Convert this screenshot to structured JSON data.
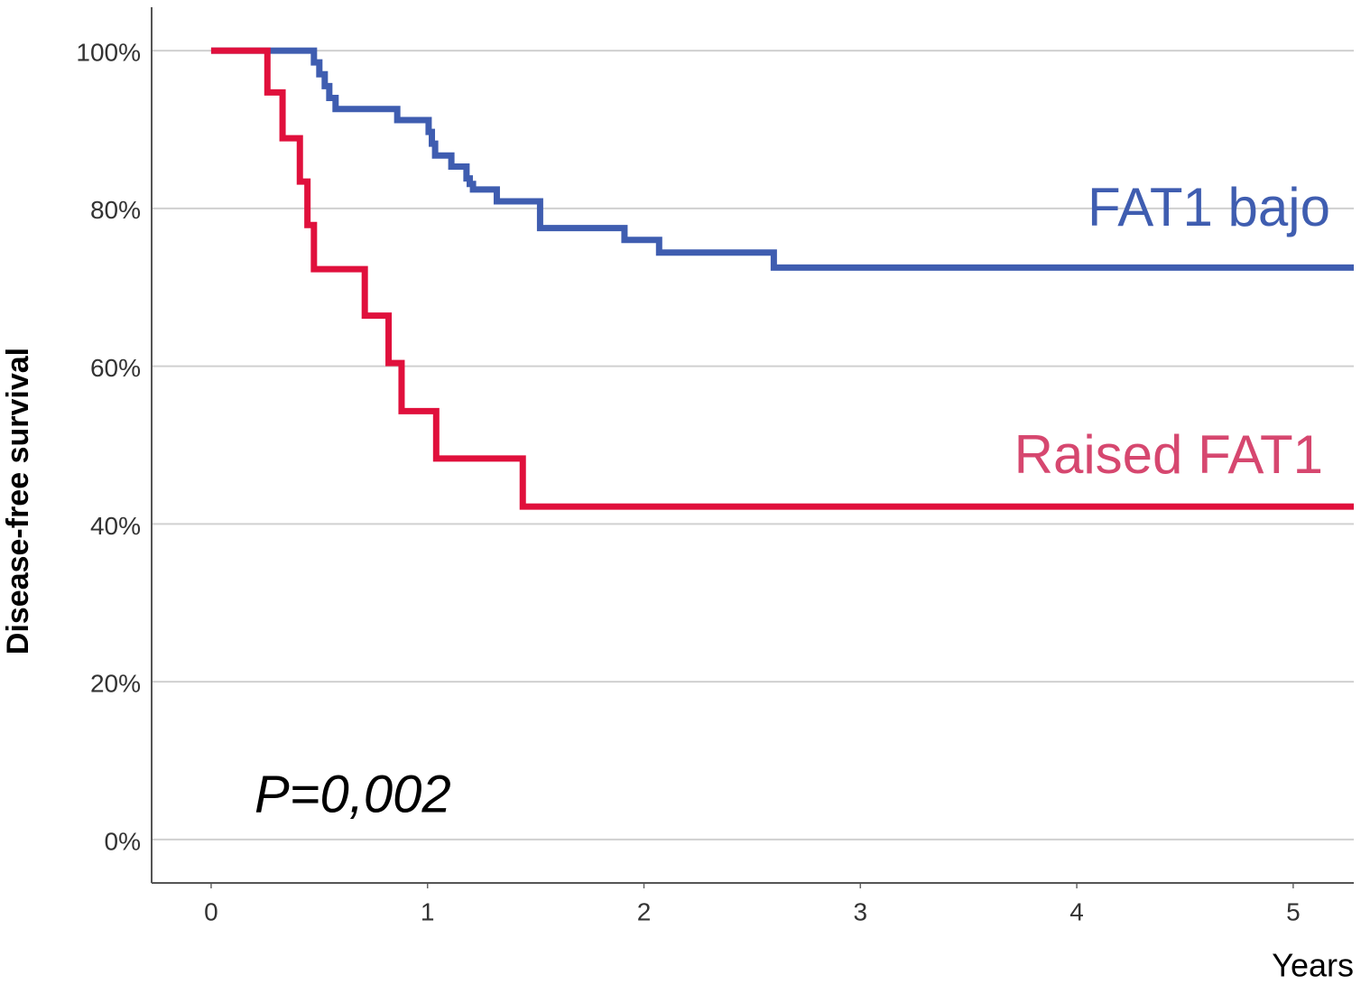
{
  "chart_data": {
    "type": "step",
    "ylabel": "Disease-free survival",
    "xlabel": "Years",
    "annotation": "P=0,002",
    "xlim": [
      -0.275,
      5.28
    ],
    "ylim": [
      -5.5,
      105.5
    ],
    "xticks": [
      0,
      1,
      2,
      3,
      4,
      5
    ],
    "yticks": [
      {
        "value": 0,
        "label": "0%"
      },
      {
        "value": 20,
        "label": "20%"
      },
      {
        "value": 40,
        "label": "40%"
      },
      {
        "value": 60,
        "label": "60%"
      },
      {
        "value": 80,
        "label": "80%"
      },
      {
        "value": 100,
        "label": "100%"
      }
    ],
    "grid": true,
    "series": [
      {
        "name": "FAT1 bajo",
        "color": "#3f5db0",
        "label_color": "#3f5db0",
        "x": [
          0,
          0.475,
          0.5,
          0.525,
          0.546,
          0.575,
          0.86,
          1.005,
          1.02,
          1.035,
          1.047,
          1.11,
          1.18,
          1.195,
          1.21,
          1.32,
          1.52,
          1.91,
          2.07,
          2.6,
          5.28
        ],
        "values": [
          100,
          98.5,
          97,
          95.5,
          94,
          92.6,
          91.2,
          89.7,
          88.2,
          86.7,
          86.7,
          85.3,
          83.8,
          83.1,
          82.4,
          80.9,
          77.5,
          76,
          74.4,
          72.5,
          72.5
        ]
      },
      {
        "name": "Raised FAT1",
        "color": "#e0103c",
        "label_color": "#d6476f",
        "x": [
          0,
          0.26,
          0.33,
          0.41,
          0.445,
          0.475,
          0.71,
          0.82,
          0.88,
          1.04,
          1.44,
          5.28
        ],
        "values": [
          100,
          94.7,
          88.9,
          83.4,
          77.9,
          72.3,
          66.4,
          60.4,
          54.3,
          48.3,
          42.2,
          42.2
        ]
      }
    ]
  }
}
